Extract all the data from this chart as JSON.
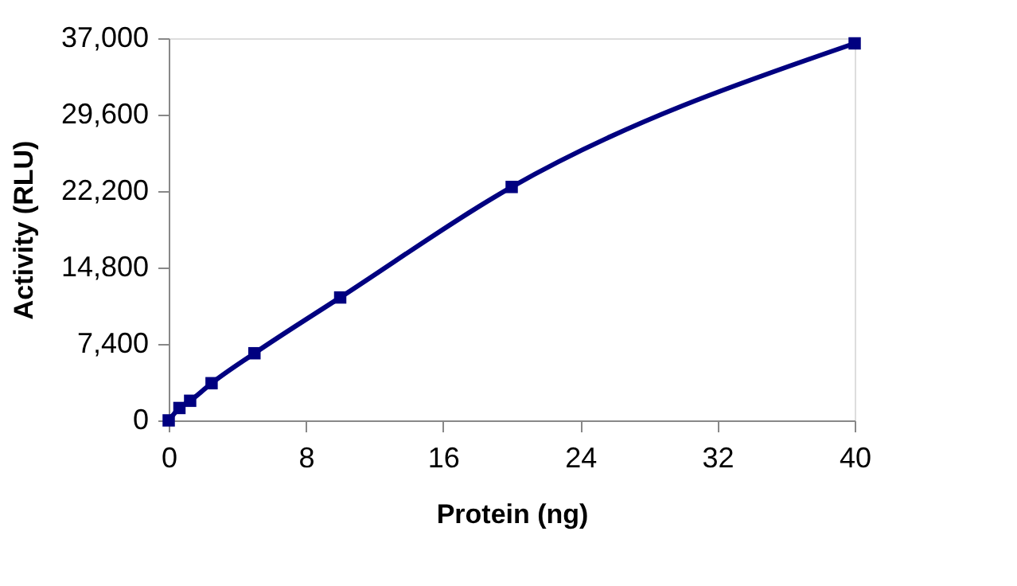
{
  "chart_data": {
    "type": "line",
    "xlabel": "Protein (ng)",
    "ylabel": "Activity (RLU)",
    "x": [
      0,
      0.625,
      1.25,
      2.5,
      5,
      10,
      20,
      40
    ],
    "series": [
      {
        "color": "#000080",
        "values": [
          0,
          1200,
          1900,
          3600,
          6500,
          11900,
          22600,
          36500
        ]
      }
    ],
    "xlim": [
      0,
      40
    ],
    "xticks": [
      0,
      8,
      16,
      24,
      32,
      40
    ],
    "ylim": [
      0,
      37000
    ],
    "yticks": [
      {
        "value": 0,
        "label": "0"
      },
      {
        "value": 7400,
        "label": "7,400"
      },
      {
        "value": 14800,
        "label": "14,800"
      },
      {
        "value": 22200,
        "label": "22,200"
      },
      {
        "value": 29600,
        "label": "29,600"
      },
      {
        "value": 37000,
        "label": "37,000"
      }
    ],
    "grid": false,
    "marker": "square",
    "line_style": "solid"
  }
}
